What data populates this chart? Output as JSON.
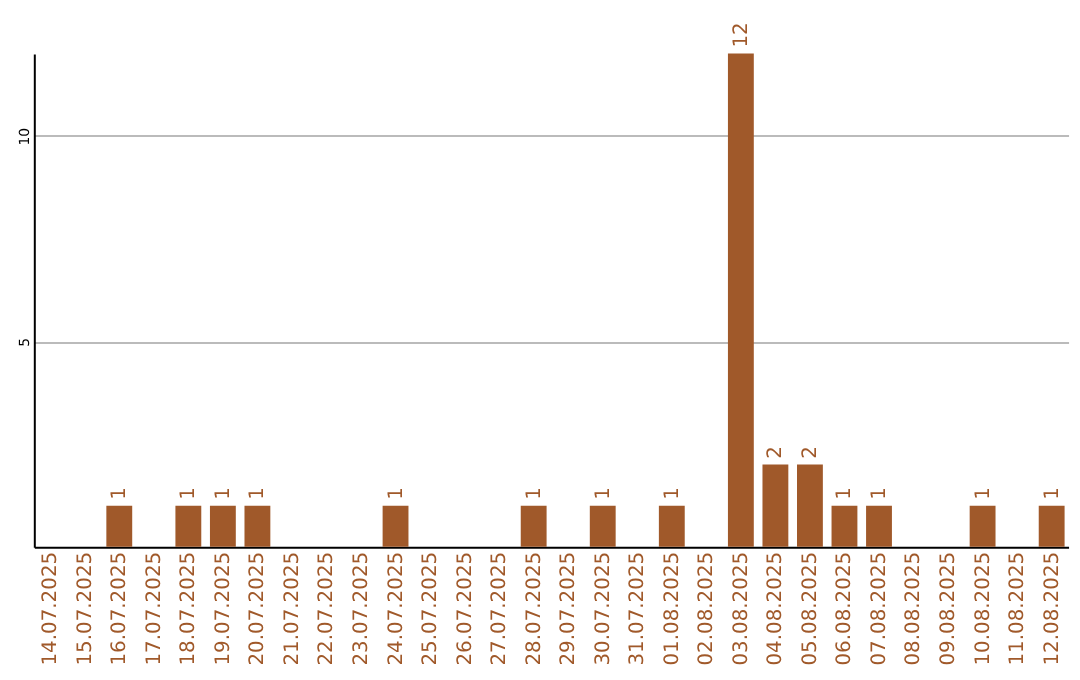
{
  "chart_data": {
    "type": "bar",
    "categories": [
      "14.07.2025",
      "15.07.2025",
      "16.07.2025",
      "17.07.2025",
      "18.07.2025",
      "19.07.2025",
      "20.07.2025",
      "21.07.2025",
      "22.07.2025",
      "23.07.2025",
      "24.07.2025",
      "25.07.2025",
      "26.07.2025",
      "27.07.2025",
      "28.07.2025",
      "29.07.2025",
      "30.07.2025",
      "31.07.2025",
      "01.08.2025",
      "02.08.2025",
      "03.08.2025",
      "04.08.2025",
      "05.08.2025",
      "06.08.2025",
      "07.08.2025",
      "08.08.2025",
      "09.08.2025",
      "10.08.2025",
      "11.08.2025",
      "12.08.2025"
    ],
    "values": [
      0,
      0,
      1,
      0,
      1,
      1,
      1,
      0,
      0,
      0,
      1,
      0,
      0,
      0,
      1,
      0,
      1,
      0,
      1,
      0,
      12,
      2,
      2,
      1,
      1,
      0,
      0,
      1,
      0,
      1
    ],
    "value_labels": [
      null,
      null,
      "1",
      null,
      "1",
      "1",
      "1",
      null,
      null,
      null,
      "1",
      null,
      null,
      null,
      "1",
      null,
      "1",
      null,
      "1",
      null,
      "12",
      "2",
      "2",
      "1",
      "1",
      null,
      null,
      "1",
      null,
      "1"
    ],
    "color": "#a0592a",
    "ylim": [
      0,
      12
    ],
    "yticks": [
      5,
      10
    ],
    "grid": "y"
  }
}
